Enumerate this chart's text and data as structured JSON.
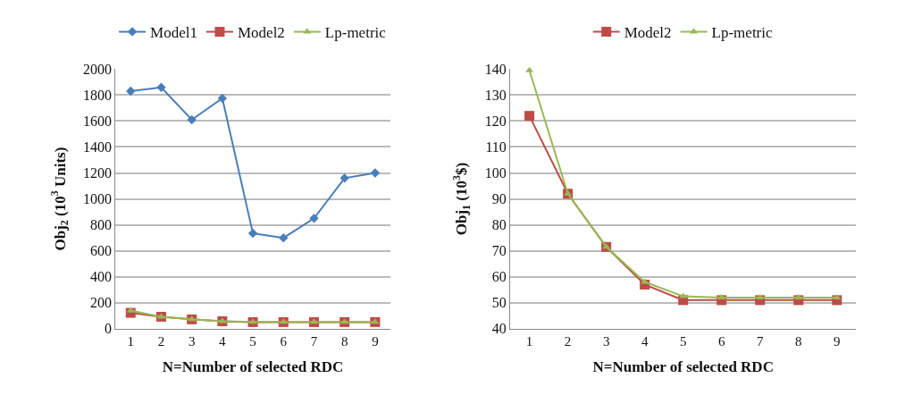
{
  "chart_data": [
    {
      "type": "line",
      "categories": [
        "1",
        "2",
        "3",
        "4",
        "5",
        "6",
        "7",
        "8",
        "9"
      ],
      "xlabel": "N=Number of selected RDC",
      "ylabel": "Obj$_{2}$ (10$^{3}$ Units)",
      "ylim": [
        0,
        2000
      ],
      "yticks": [
        0,
        200,
        400,
        600,
        800,
        1000,
        1200,
        1400,
        1600,
        1800,
        2000
      ],
      "grid": "y",
      "legend": "top",
      "series": [
        {
          "name": "Model1",
          "color": "#4a7ebb",
          "marker": "diamond",
          "values": [
            1830,
            1860,
            1610,
            1775,
            735,
            700,
            850,
            1160,
            1200
          ]
        },
        {
          "name": "Model2",
          "color": "#be4b48",
          "marker": "square",
          "values": [
            122,
            92,
            72,
            57,
            51,
            51,
            51,
            51,
            51
          ]
        },
        {
          "name": "Lp-metric",
          "color": "#98b954",
          "marker": "triangle",
          "values": [
            140,
            92,
            72,
            58,
            52,
            52,
            52,
            52,
            52
          ]
        }
      ]
    },
    {
      "type": "line",
      "categories": [
        "1",
        "2",
        "3",
        "4",
        "5",
        "6",
        "7",
        "8",
        "9"
      ],
      "xlabel": "N=Number of selected RDC",
      "ylabel": "Obj$_{1}$ (10$^{3}$$)",
      "ylim": [
        40,
        140
      ],
      "yticks": [
        40,
        50,
        60,
        70,
        80,
        90,
        100,
        110,
        120,
        130,
        140
      ],
      "grid": "y",
      "legend": "top",
      "series": [
        {
          "name": "Model2",
          "color": "#be4b48",
          "marker": "square",
          "values": [
            122,
            92,
            71.5,
            57,
            51,
            51,
            51,
            51,
            51
          ]
        },
        {
          "name": "Lp-metric",
          "color": "#98b954",
          "marker": "triangle",
          "values": [
            139.5,
            92,
            71.5,
            58,
            52.5,
            52,
            52,
            52,
            52
          ]
        }
      ]
    }
  ]
}
